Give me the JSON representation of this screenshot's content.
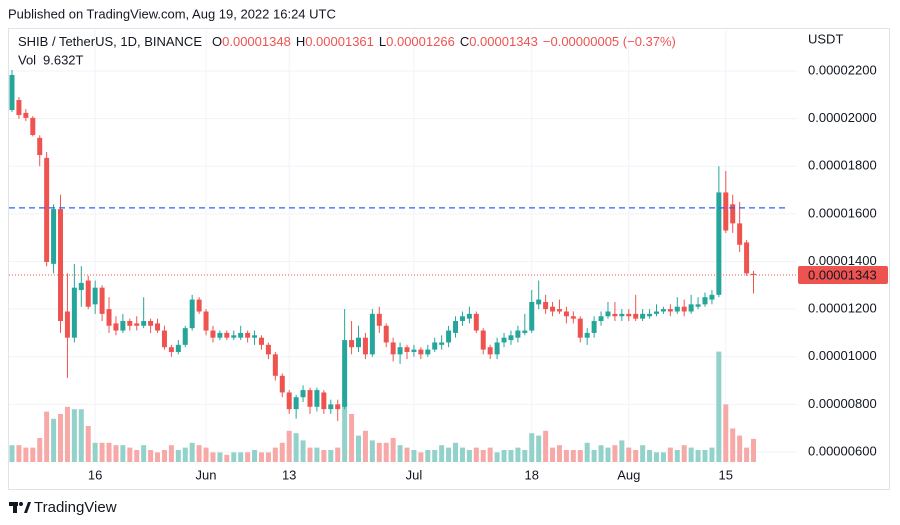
{
  "header": {
    "publisher": "Published on TradingView.com, Aug 19, 2022 16:24 UTC",
    "footer": "TradingView"
  },
  "chart_data": {
    "type": "candlestick",
    "symbol": "SHIB / TetherUS, 1D, BINANCE",
    "ohlc_legend": [
      {
        "label": "O",
        "value": "0.00001348"
      },
      {
        "label": "H",
        "value": "0.00001361"
      },
      {
        "label": "L",
        "value": "0.00001266"
      },
      {
        "label": "C",
        "value": "0.00001343"
      }
    ],
    "change": "−0.00000005 (−0.37%)",
    "volume_title": "Vol",
    "volume_value_label": "9.632T",
    "axis_unit": "USDT",
    "categories": [
      null,
      null,
      null,
      null,
      null,
      null,
      null,
      null,
      null,
      null,
      null,
      null,
      "16",
      null,
      null,
      null,
      null,
      null,
      null,
      null,
      null,
      null,
      null,
      null,
      null,
      null,
      null,
      null,
      "Jun",
      null,
      null,
      null,
      null,
      null,
      null,
      null,
      null,
      null,
      null,
      null,
      "13",
      null,
      null,
      null,
      null,
      null,
      null,
      null,
      null,
      null,
      null,
      null,
      null,
      null,
      null,
      null,
      null,
      null,
      "Jul",
      null,
      null,
      null,
      null,
      null,
      null,
      null,
      null,
      null,
      null,
      null,
      null,
      null,
      null,
      null,
      null,
      "18",
      null,
      null,
      null,
      null,
      null,
      null,
      null,
      null,
      null,
      null,
      null,
      null,
      null,
      "Aug",
      null,
      null,
      null,
      null,
      null,
      null,
      null,
      null,
      null,
      null,
      null,
      null,
      null,
      "15",
      null,
      null,
      null,
      null
    ],
    "open": [
      2.036e-05,
      2.078e-05,
      2.024e-05,
      2.003e-05,
      1.919e-05,
      1.835e-05,
      1.39e-05,
      1.62e-05,
      1.19e-05,
      1.08e-05,
      1.28e-05,
      1.32e-05,
      1.22e-05,
      1.29e-05,
      1.2e-05,
      1.14e-05,
      1.11e-05,
      1.15e-05,
      1.14e-05,
      1.13e-05,
      1.15e-05,
      1.14e-05,
      1.11e-05,
      1.04e-05,
      1.02e-05,
      1.05e-05,
      1.12e-05,
      1.24e-05,
      1.19e-05,
      1.11e-05,
      1.08e-05,
      1.1e-05,
      1.08e-05,
      1.08e-05,
      1.1e-05,
      1.08e-05,
      1.08e-05,
      1.05e-05,
      1.01e-05,
      9.2e-06,
      8.5e-06,
      7.8e-06,
      8.3e-06,
      8.6e-06,
      7.9e-06,
      8.5e-06,
      7.8e-06,
      8e-06,
      7.9e-06,
      1.07e-05,
      1.04e-05,
      1.08e-05,
      1.01e-05,
      1.18e-05,
      1.13e-05,
      1.06e-05,
      1.01e-05,
      1.04e-05,
      1.02e-05,
      1.03e-05,
      1.01e-05,
      1.03e-05,
      1.05e-05,
      1.06e-05,
      1.1e-05,
      1.15e-05,
      1.16e-05,
      1.18e-05,
      1.11e-05,
      1.04e-05,
      1.01e-05,
      1.06e-05,
      1.07e-05,
      1.08e-05,
      1.1e-05,
      1.11e-05,
      1.22e-05,
      1.23e-05,
      1.21e-05,
      1.2e-05,
      1.19e-05,
      1.17e-05,
      1.16e-05,
      1.08e-05,
      1.1e-05,
      1.15e-05,
      1.17e-05,
      1.18e-05,
      1.17e-05,
      1.18e-05,
      1.18e-05,
      1.16e-05,
      1.17e-05,
      1.18e-05,
      1.19e-05,
      1.2e-05,
      1.19e-05,
      1.21e-05,
      1.19e-05,
      1.21e-05,
      1.22e-05,
      1.24e-05,
      1.26e-05,
      1.69e-05,
      1.64e-05,
      1.56e-05,
      1.48e-05,
      1.348e-05
    ],
    "high": [
      2.204e-05,
      2.09e-05,
      2.04e-05,
      2.01e-05,
      1.93e-05,
      1.86e-05,
      1.64e-05,
      1.68e-05,
      1.35e-05,
      1.39e-05,
      1.38e-05,
      1.34e-05,
      1.32e-05,
      1.3e-05,
      1.25e-05,
      1.17e-05,
      1.18e-05,
      1.16e-05,
      1.17e-05,
      1.25e-05,
      1.16e-05,
      1.16e-05,
      1.13e-05,
      1.05e-05,
      1.07e-05,
      1.13e-05,
      1.26e-05,
      1.25e-05,
      1.2e-05,
      1.13e-05,
      1.11e-05,
      1.11e-05,
      1.11e-05,
      1.13e-05,
      1.11e-05,
      1.11e-05,
      1.09e-05,
      1.06e-05,
      1.02e-05,
      9.3e-06,
      8.6e-06,
      8.4e-06,
      8.8e-06,
      8.7e-06,
      8.7e-06,
      8.6e-06,
      8.2e-06,
      8.2e-06,
      1.2e-05,
      1.15e-05,
      1.13e-05,
      1.1e-05,
      1.2e-05,
      1.21e-05,
      1.14e-05,
      1.08e-05,
      1.06e-05,
      1.05e-05,
      1.05e-05,
      1.04e-05,
      1.05e-05,
      1.08e-05,
      1.09e-05,
      1.13e-05,
      1.17e-05,
      1.19e-05,
      1.21e-05,
      1.19e-05,
      1.12e-05,
      1.05e-05,
      1.08e-05,
      1.1e-05,
      1.11e-05,
      1.13e-05,
      1.18e-05,
      1.28e-05,
      1.32e-05,
      1.26e-05,
      1.23e-05,
      1.24e-05,
      1.21e-05,
      1.19e-05,
      1.17e-05,
      1.12e-05,
      1.17e-05,
      1.19e-05,
      1.23e-05,
      1.23e-05,
      1.2e-05,
      1.2e-05,
      1.26e-05,
      1.2e-05,
      1.2e-05,
      1.22e-05,
      1.21e-05,
      1.22e-05,
      1.25e-05,
      1.24e-05,
      1.26e-05,
      1.25e-05,
      1.27e-05,
      1.28e-05,
      1.8e-05,
      1.78e-05,
      1.68e-05,
      1.65e-05,
      1.49e-05,
      1.361e-05
    ],
    "low": [
      2.028e-05,
      2e-05,
      1.99e-05,
      1.925e-05,
      1.8e-05,
      1.38e-05,
      1.35e-05,
      1.1e-05,
      9.11e-06,
      1.06e-05,
      1.21e-05,
      1.2e-05,
      1.18e-05,
      1.15e-05,
      1.1e-05,
      1.09e-05,
      1.1e-05,
      1.11e-05,
      1.11e-05,
      1.12e-05,
      1.1e-05,
      1.1e-05,
      1.03e-05,
      1e-05,
      1.01e-05,
      1.04e-05,
      1.11e-05,
      1.18e-05,
      1.09e-05,
      1.06e-05,
      1.07e-05,
      1.07e-05,
      1.07e-05,
      1.07e-05,
      1.06e-05,
      1.05e-05,
      1.03e-05,
      9.9e-06,
      9e-06,
      8.3e-06,
      7.6e-06,
      7.4e-06,
      8.1e-06,
      7.6e-06,
      7.7e-06,
      7.6e-06,
      7.6e-06,
      7.3e-06,
      7.8e-06,
      1.01e-05,
      1.02e-05,
      9.9e-06,
      1e-05,
      1.1e-05,
      1.04e-05,
      9.8e-06,
      9.7e-06,
      9.9e-06,
      1e-05,
      9.9e-06,
      1e-05,
      1.02e-05,
      1.03e-05,
      1.04e-05,
      1.08e-05,
      1.13e-05,
      1.14e-05,
      1.1e-05,
      1.01e-05,
      9.9e-06,
      9.9e-06,
      1.04e-05,
      1.05e-05,
      1.06e-05,
      1.09e-05,
      1.1e-05,
      1.2e-05,
      1.18e-05,
      1.17e-05,
      1.18e-05,
      1.14e-05,
      1.14e-05,
      1.06e-05,
      1.05e-05,
      1.08e-05,
      1.13e-05,
      1.16e-05,
      1.15e-05,
      1.15e-05,
      1.15e-05,
      1.15e-05,
      1.15e-05,
      1.16e-05,
      1.17e-05,
      1.18e-05,
      1.17e-05,
      1.18e-05,
      1.17e-05,
      1.18e-05,
      1.2e-05,
      1.21e-05,
      1.22e-05,
      1.25e-05,
      1.52e-05,
      1.52e-05,
      1.44e-05,
      1.34e-05,
      1.266e-05
    ],
    "close": [
      2.183e-05,
      2.015e-05,
      2.003e-05,
      1.931e-05,
      1.847e-05,
      1.398e-05,
      1.62e-05,
      1.15e-05,
      1.08e-05,
      1.29e-05,
      1.31e-05,
      1.21e-05,
      1.29e-05,
      1.18e-05,
      1.13e-05,
      1.11e-05,
      1.15e-05,
      1.13e-05,
      1.13e-05,
      1.15e-05,
      1.13e-05,
      1.11e-05,
      1.04e-05,
      1.02e-05,
      1.05e-05,
      1.12e-05,
      1.24e-05,
      1.19e-05,
      1.11e-05,
      1.08e-05,
      1.1e-05,
      1.08e-05,
      1.09e-05,
      1.1e-05,
      1.08e-05,
      1.09e-05,
      1.05e-05,
      1.01e-05,
      9.2e-06,
      8.5e-06,
      7.8e-06,
      8.3e-06,
      8.6e-06,
      7.9e-06,
      8.6e-06,
      7.8e-06,
      8e-06,
      7.8e-06,
      1.07e-05,
      1.04e-05,
      1.08e-05,
      1.01e-05,
      1.18e-05,
      1.13e-05,
      1.06e-05,
      1.01e-05,
      1.04e-05,
      1.02e-05,
      1.03e-05,
      1.01e-05,
      1.03e-05,
      1.06e-05,
      1.06e-05,
      1.11e-05,
      1.15e-05,
      1.17e-05,
      1.18e-05,
      1.11e-05,
      1.03e-05,
      1.01e-05,
      1.06e-05,
      1.08e-05,
      1.09e-05,
      1.11e-05,
      1.11e-05,
      1.23e-05,
      1.24e-05,
      1.2e-05,
      1.19e-05,
      1.19e-05,
      1.17e-05,
      1.16e-05,
      1.08e-05,
      1.1e-05,
      1.15e-05,
      1.17e-05,
      1.19e-05,
      1.17e-05,
      1.18e-05,
      1.17e-05,
      1.16e-05,
      1.18e-05,
      1.18e-05,
      1.19e-05,
      1.2e-05,
      1.19e-05,
      1.21e-05,
      1.19e-05,
      1.22e-05,
      1.22e-05,
      1.25e-05,
      1.26e-05,
      1.69e-05,
      1.53e-05,
      1.56e-05,
      1.47e-05,
      1.35e-05,
      1.343e-05
    ],
    "volume": [
      7,
      7,
      6,
      6,
      10,
      21,
      18,
      20,
      23,
      22,
      22,
      15,
      8,
      8,
      8,
      7,
      7,
      6,
      5,
      7,
      5,
      4,
      5,
      7,
      5,
      6,
      8,
      7,
      6,
      4,
      4,
      3,
      4,
      4,
      4,
      5,
      4,
      4,
      6,
      8,
      13,
      12,
      9,
      6,
      6,
      5,
      5,
      6,
      24,
      20,
      11,
      13,
      9,
      8,
      8,
      10,
      7,
      6,
      5,
      4,
      5,
      5,
      7,
      6,
      8,
      6,
      5,
      6,
      5,
      6,
      4,
      5,
      5,
      6,
      5,
      12,
      11,
      13,
      6,
      7,
      5,
      5,
      5,
      8,
      5,
      7,
      6,
      7,
      9,
      6,
      5,
      7,
      5,
      4,
      4,
      6,
      5,
      7,
      6,
      5,
      5,
      6,
      46,
      24,
      14,
      11,
      6,
      9.632
    ],
    "up_color": "#26a69a",
    "down_color": "#ef5350",
    "volume_up_color": "#93d2ca",
    "volume_down_color": "#f7a9a7",
    "ylim": [
      5.58e-06,
      2.372e-05
    ],
    "yticks": [
      {
        "value": 6e-06,
        "label": "0.00000600"
      },
      {
        "value": 8e-06,
        "label": "0.00000800"
      },
      {
        "value": 1e-05,
        "label": "0.00001000"
      },
      {
        "value": 1.2e-05,
        "label": "0.00001200"
      },
      {
        "value": 1.4e-05,
        "label": "0.00001400"
      },
      {
        "value": 1.6e-05,
        "label": "0.00001600"
      },
      {
        "value": 1.8e-05,
        "label": "0.00001800"
      },
      {
        "value": 2e-05,
        "label": "0.00002000"
      },
      {
        "value": 2.2e-05,
        "label": "0.00002200"
      }
    ],
    "volume_ylim": [
      0,
      50
    ],
    "grid": true,
    "hline": {
      "value": 1.625e-05,
      "color": "#2962ff"
    },
    "last_value_label": "0.00001343"
  }
}
